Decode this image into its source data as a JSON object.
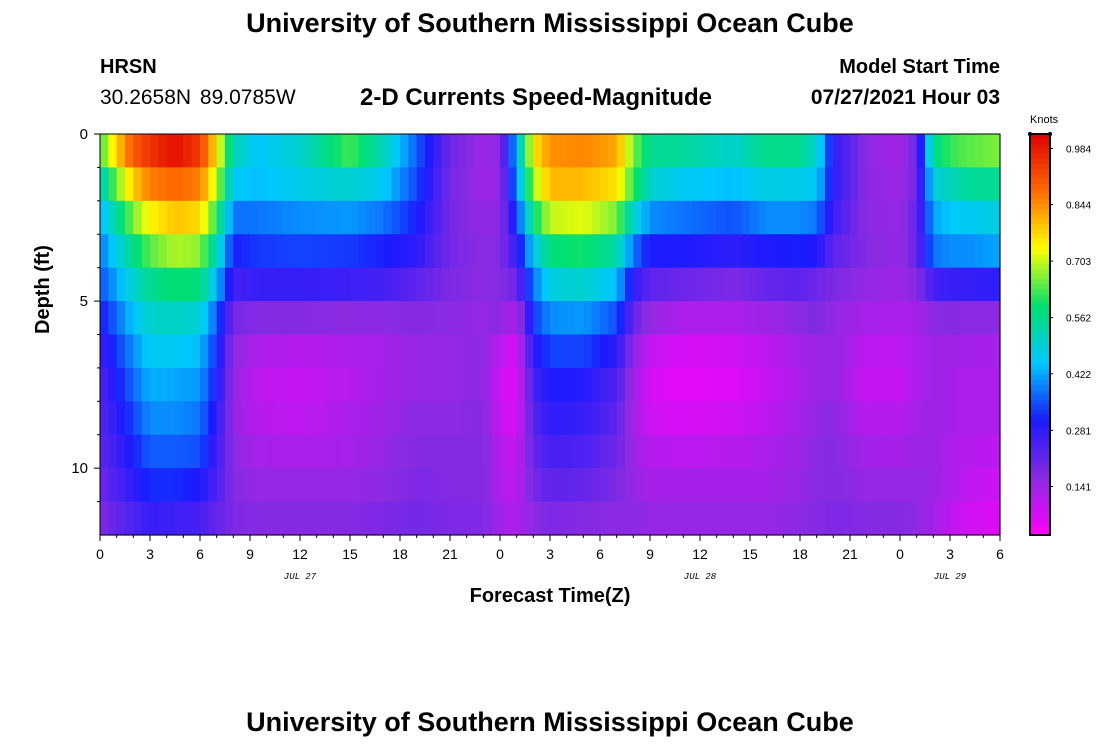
{
  "header": {
    "title": "University of Southern Mississippi Ocean Cube",
    "station_name": "HRSN",
    "station_coords": "30.2658N  89.0785W",
    "model_label": "Model Start Time",
    "model_time": "07/27/2021 Hour 03"
  },
  "footer": {
    "title": "University of Southern Mississippi Ocean Cube"
  },
  "chart_data": {
    "type": "heatmap",
    "title": "2-D Currents Speed-Magnitude",
    "xlabel": "Forecast Time(Z)",
    "ylabel": "Depth (ft)",
    "units": "Knots",
    "x_range_hours": [
      0,
      54
    ],
    "y_range_ft": [
      0,
      12
    ],
    "x_tick_labels": [
      "0",
      "3",
      "6",
      "9",
      "12",
      "15",
      "18",
      "21",
      "0",
      "3",
      "6",
      "9",
      "12",
      "15",
      "18",
      "21",
      "0",
      "3",
      "6"
    ],
    "x_date_labels": [
      {
        "label": "JUL 27",
        "hour": 12
      },
      {
        "label": "JUL 28",
        "hour": 36
      },
      {
        "label": "JUL 29",
        "hour": 51
      }
    ],
    "y_tick_labels": [
      "0",
      "5",
      "10"
    ],
    "y_tick_values": [
      0,
      5,
      10
    ],
    "colorbar_labels": [
      "0.984",
      "0.844",
      "0.703",
      "0.562",
      "0.422",
      "0.281",
      "0.141"
    ],
    "colorbar_values": [
      0.984,
      0.844,
      0.703,
      0.562,
      0.422,
      0.281,
      0.141
    ],
    "colorbar_range": [
      0.02,
      1.02
    ],
    "colorbar_colors": [
      "#ff00ff",
      "#8a2be2",
      "#1a1aff",
      "#00c8ff",
      "#00e070",
      "#ffff00",
      "#ff6a00",
      "#e00000"
    ],
    "depth_levels_ft": [
      0.5,
      1.5,
      2.5,
      3.5,
      4.5,
      5.5,
      6.5,
      7.5,
      8.5,
      9.5,
      10.5,
      11.5
    ],
    "time_keyframes_hours": [
      0,
      1,
      2,
      3,
      4.5,
      6,
      7,
      8,
      9.5,
      12,
      15,
      17,
      19,
      21,
      23,
      24,
      25,
      26,
      27,
      29,
      31,
      32,
      33,
      35,
      38,
      40,
      42,
      43,
      44,
      46,
      48,
      49,
      50,
      51,
      52,
      54
    ],
    "speed_profiles_knots": [
      [
        0.62,
        0.5,
        0.42,
        0.38,
        0.35,
        0.3,
        0.26,
        0.24,
        0.23,
        0.22,
        0.2,
        0.18
      ],
      [
        0.78,
        0.66,
        0.55,
        0.47,
        0.42,
        0.37,
        0.33,
        0.3,
        0.28,
        0.26,
        0.24,
        0.21
      ],
      [
        0.9,
        0.78,
        0.66,
        0.57,
        0.5,
        0.45,
        0.4,
        0.37,
        0.34,
        0.31,
        0.28,
        0.24
      ],
      [
        0.95,
        0.86,
        0.74,
        0.64,
        0.56,
        0.5,
        0.46,
        0.43,
        0.4,
        0.36,
        0.32,
        0.27
      ],
      [
        1.0,
        0.88,
        0.79,
        0.69,
        0.59,
        0.51,
        0.46,
        0.42,
        0.4,
        0.36,
        0.32,
        0.26
      ],
      [
        0.94,
        0.86,
        0.77,
        0.67,
        0.58,
        0.49,
        0.44,
        0.41,
        0.38,
        0.35,
        0.3,
        0.25
      ],
      [
        0.76,
        0.7,
        0.61,
        0.52,
        0.44,
        0.36,
        0.32,
        0.3,
        0.28,
        0.26,
        0.24,
        0.21
      ],
      [
        0.52,
        0.46,
        0.38,
        0.31,
        0.25,
        0.19,
        0.16,
        0.15,
        0.15,
        0.16,
        0.17,
        0.18
      ],
      [
        0.45,
        0.44,
        0.38,
        0.33,
        0.27,
        0.17,
        0.12,
        0.1,
        0.11,
        0.13,
        0.15,
        0.17
      ],
      [
        0.5,
        0.47,
        0.4,
        0.34,
        0.27,
        0.17,
        0.11,
        0.09,
        0.1,
        0.12,
        0.15,
        0.17
      ],
      [
        0.63,
        0.5,
        0.41,
        0.33,
        0.26,
        0.16,
        0.12,
        0.11,
        0.12,
        0.13,
        0.15,
        0.17
      ],
      [
        0.52,
        0.46,
        0.38,
        0.31,
        0.25,
        0.16,
        0.13,
        0.13,
        0.14,
        0.15,
        0.16,
        0.18
      ],
      [
        0.36,
        0.34,
        0.31,
        0.28,
        0.22,
        0.17,
        0.15,
        0.15,
        0.16,
        0.17,
        0.18,
        0.19
      ],
      [
        0.2,
        0.19,
        0.19,
        0.19,
        0.18,
        0.16,
        0.15,
        0.15,
        0.16,
        0.17,
        0.17,
        0.18
      ],
      [
        0.14,
        0.14,
        0.15,
        0.16,
        0.16,
        0.15,
        0.16,
        0.16,
        0.17,
        0.17,
        0.17,
        0.18
      ],
      [
        0.16,
        0.15,
        0.16,
        0.17,
        0.17,
        0.16,
        0.1,
        0.08,
        0.09,
        0.11,
        0.12,
        0.13
      ],
      [
        0.44,
        0.4,
        0.33,
        0.27,
        0.2,
        0.12,
        0.07,
        0.06,
        0.07,
        0.09,
        0.1,
        0.12
      ],
      [
        0.75,
        0.68,
        0.58,
        0.46,
        0.38,
        0.33,
        0.28,
        0.25,
        0.23,
        0.21,
        0.19,
        0.16
      ],
      [
        0.84,
        0.8,
        0.7,
        0.58,
        0.48,
        0.4,
        0.34,
        0.3,
        0.28,
        0.25,
        0.22,
        0.18
      ],
      [
        0.85,
        0.8,
        0.72,
        0.6,
        0.5,
        0.41,
        0.34,
        0.29,
        0.27,
        0.24,
        0.21,
        0.17
      ],
      [
        0.82,
        0.76,
        0.66,
        0.54,
        0.44,
        0.35,
        0.28,
        0.24,
        0.22,
        0.2,
        0.18,
        0.16
      ],
      [
        0.66,
        0.62,
        0.5,
        0.38,
        0.28,
        0.21,
        0.16,
        0.14,
        0.13,
        0.14,
        0.15,
        0.16
      ],
      [
        0.56,
        0.5,
        0.4,
        0.3,
        0.22,
        0.15,
        0.09,
        0.07,
        0.08,
        0.11,
        0.13,
        0.15
      ],
      [
        0.55,
        0.46,
        0.38,
        0.3,
        0.2,
        0.12,
        0.07,
        0.05,
        0.07,
        0.1,
        0.13,
        0.15
      ],
      [
        0.5,
        0.44,
        0.35,
        0.28,
        0.18,
        0.12,
        0.08,
        0.06,
        0.08,
        0.11,
        0.13,
        0.15
      ],
      [
        0.57,
        0.48,
        0.4,
        0.3,
        0.21,
        0.14,
        0.1,
        0.09,
        0.1,
        0.12,
        0.13,
        0.15
      ],
      [
        0.56,
        0.47,
        0.4,
        0.31,
        0.22,
        0.16,
        0.13,
        0.12,
        0.13,
        0.14,
        0.15,
        0.16
      ],
      [
        0.5,
        0.46,
        0.38,
        0.3,
        0.2,
        0.18,
        0.14,
        0.14,
        0.15,
        0.16,
        0.16,
        0.17
      ],
      [
        0.28,
        0.28,
        0.26,
        0.22,
        0.18,
        0.15,
        0.15,
        0.15,
        0.16,
        0.17,
        0.17,
        0.18
      ],
      [
        0.16,
        0.16,
        0.16,
        0.17,
        0.15,
        0.13,
        0.1,
        0.09,
        0.11,
        0.13,
        0.15,
        0.17
      ],
      [
        0.13,
        0.14,
        0.15,
        0.15,
        0.14,
        0.12,
        0.1,
        0.09,
        0.11,
        0.13,
        0.15,
        0.17
      ],
      [
        0.2,
        0.2,
        0.21,
        0.21,
        0.17,
        0.13,
        0.12,
        0.12,
        0.13,
        0.14,
        0.15,
        0.16
      ],
      [
        0.56,
        0.48,
        0.42,
        0.38,
        0.25,
        0.16,
        0.14,
        0.14,
        0.14,
        0.14,
        0.14,
        0.13
      ],
      [
        0.62,
        0.52,
        0.45,
        0.4,
        0.27,
        0.17,
        0.14,
        0.13,
        0.13,
        0.12,
        0.12,
        0.1
      ],
      [
        0.64,
        0.55,
        0.46,
        0.4,
        0.27,
        0.16,
        0.13,
        0.12,
        0.12,
        0.11,
        0.1,
        0.08
      ],
      [
        0.66,
        0.56,
        0.48,
        0.42,
        0.28,
        0.16,
        0.13,
        0.12,
        0.12,
        0.1,
        0.08,
        0.06
      ]
    ]
  }
}
